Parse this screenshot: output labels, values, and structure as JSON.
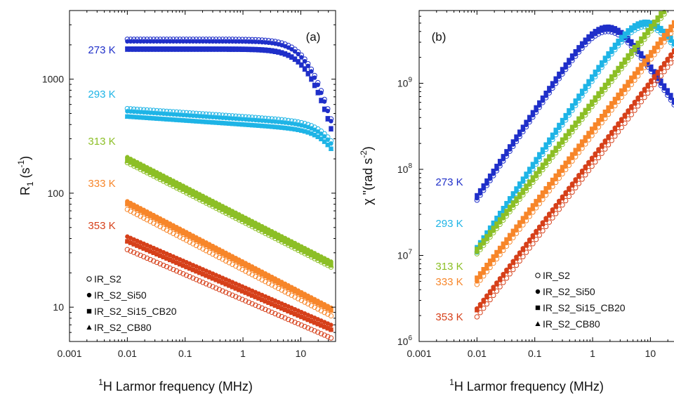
{
  "temperature_colors": {
    "273 K": "#1f2fc9",
    "293 K": "#1eb4e6",
    "313 K": "#8cbf26",
    "333 K": "#f7862a",
    "353 K": "#d6401a"
  },
  "legend": [
    "IR_S2",
    "IR_S2_Si50",
    "IR_S2_Si15_CB20",
    "IR_S2_CB80"
  ],
  "chart_data": [
    {
      "type": "scatter",
      "panel_label": "(a)",
      "xlabel_sup": "1",
      "xlabel_main": "H Larmor frequency (MHz)",
      "ylabel_main": "R",
      "ylabel_sub": "1",
      "ylabel_unit_open": " (s",
      "ylabel_unit_sup": "-1",
      "ylabel_unit_close": ")",
      "xscale": "log",
      "yscale": "log",
      "xlim": [
        0.001,
        40
      ],
      "ylim": [
        5,
        4000
      ],
      "xticks": [
        "0.001",
        "0.01",
        "0.1",
        "1",
        "10"
      ],
      "yticks": [
        "10",
        "100",
        "1000"
      ],
      "legend_placement": "bottom-left",
      "temp_labels": [
        "273 K",
        "293 K",
        "313 K",
        "333 K",
        "353 K"
      ],
      "series": [
        {
          "temperature": "273 K",
          "model": "debye",
          "amp": 1950,
          "tau": 0.06,
          "markers": [
            1.15,
            1.1,
            0.95,
            0.93
          ]
        },
        {
          "temperature": "293 K",
          "model": "debye_power",
          "amp": 480,
          "tau": 0.02,
          "beta": 0.035,
          "markers": [
            1.15,
            1.09,
            0.98,
            0.98
          ]
        },
        {
          "temperature": "313 K",
          "model": "power",
          "amp": 195,
          "slope": -0.26,
          "markers": [
            0.95,
            1.06,
            1.02,
            0.98
          ]
        },
        {
          "temperature": "333 K",
          "model": "power",
          "amp": 80,
          "slope": -0.265,
          "markers": [
            0.9,
            1.06,
            1.01,
            1.0
          ]
        },
        {
          "temperature": "353 K",
          "model": "power",
          "amp": 32,
          "slope": -0.22,
          "markers": [
            1.0,
            1.3,
            1.18,
            1.2
          ]
        }
      ]
    },
    {
      "type": "scatter",
      "panel_label": "(b)",
      "xlabel_sup": "1",
      "xlabel_main": "H Larmor frequency (MHz)",
      "ylabel_main": "χ \"(rad s",
      "ylabel_unit_sup": "-2",
      "ylabel_unit_close": ")",
      "xscale": "log",
      "yscale": "log",
      "xlim": [
        0.001,
        40
      ],
      "ylim": [
        1000000,
        7000000000
      ],
      "xticks": [
        "0.001",
        "0.01",
        "0.1",
        "1",
        "10"
      ],
      "ytick_values": [
        1000000,
        10000000,
        100000000,
        1000000000
      ],
      "legend_placement": "bottom-right",
      "temp_labels": [
        "273 K",
        "293 K",
        "313 K",
        "333 K",
        "353 K"
      ],
      "series": [
        {
          "temperature": "273 K",
          "model": "chi_peak",
          "amp": 4200000000,
          "tau": 0.55,
          "markers": [
            0.95,
            1.0,
            1.08,
            1.05
          ]
        },
        {
          "temperature": "293 K",
          "model": "chi_peak",
          "amp": 4800000000,
          "tau": 0.12,
          "markers": [
            0.95,
            1.0,
            1.08,
            1.05
          ]
        },
        {
          "temperature": "313 K",
          "model": "chi_power",
          "amp": 11000000,
          "slope": 0.86,
          "markers": [
            0.95,
            1.0,
            1.08,
            1.05
          ]
        },
        {
          "temperature": "333 K",
          "model": "chi_power",
          "amp": 5000000,
          "slope": 0.87,
          "markers": [
            0.92,
            1.0,
            1.1,
            1.06
          ]
        },
        {
          "temperature": "353 K",
          "model": "chi_power",
          "amp": 2100000,
          "slope": 0.88,
          "markers": [
            0.92,
            1.15,
            1.12,
            1.1
          ]
        }
      ]
    }
  ]
}
